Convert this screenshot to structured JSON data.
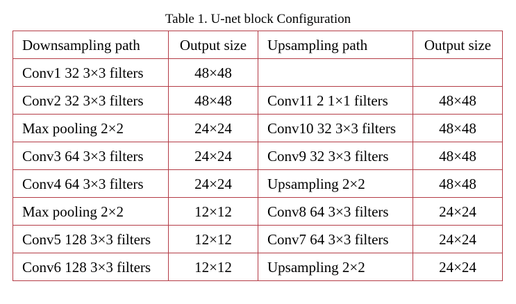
{
  "caption": "Table 1. U-net block Configuration",
  "table": {
    "headers": [
      "Downsampling path",
      "Output size",
      "Upsampling path",
      "Output size"
    ],
    "rows": [
      [
        "Conv1 32 3×3 filters",
        "48×48",
        "",
        ""
      ],
      [
        "Conv2 32 3×3 filters",
        "48×48",
        "Conv11 2 1×1 filters",
        "48×48"
      ],
      [
        "Max pooling 2×2",
        "24×24",
        "Conv10 32 3×3 filters",
        "48×48"
      ],
      [
        "Conv3 64 3×3 filters",
        "24×24",
        "Conv9 32 3×3 filters",
        "48×48"
      ],
      [
        "Conv4 64 3×3 filters",
        "24×24",
        "Upsampling 2×2",
        "48×48"
      ],
      [
        "Max pooling 2×2",
        "12×12",
        "Conv8 64 3×3 filters",
        "24×24"
      ],
      [
        "Conv5 128 3×3 filters",
        "12×12",
        "Conv7 64 3×3 filters",
        "24×24"
      ],
      [
        "Conv6 128 3×3 filters",
        "12×12",
        "Upsampling 2×2",
        "24×24"
      ]
    ]
  },
  "colors": {
    "border": "#b43c46",
    "text": "#000000",
    "background": "#ffffff"
  }
}
